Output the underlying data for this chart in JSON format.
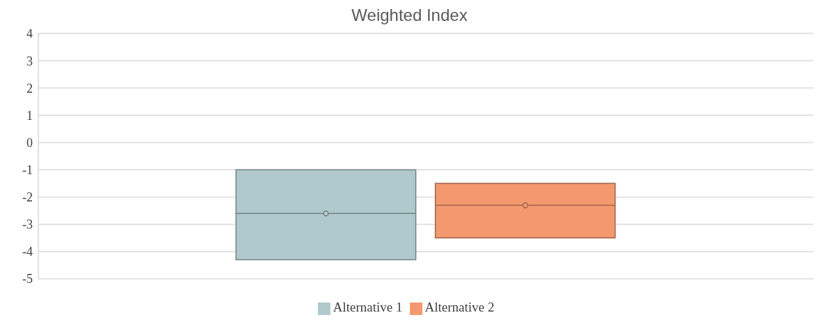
{
  "chart_data": {
    "type": "box",
    "title": "Weighted Index",
    "categories": [
      null
    ],
    "series": [
      {
        "name": "Alternative 1",
        "color": "#b0c9cc",
        "boxes": [
          {
            "q1": -4.3,
            "median": -2.6,
            "q3": -1.0,
            "mean": -2.6
          }
        ]
      },
      {
        "name": "Alternative 2",
        "color": "#f4996f",
        "boxes": [
          {
            "q1": -3.5,
            "median": -2.3,
            "q3": -1.5,
            "mean": -2.3
          }
        ]
      }
    ],
    "ylim": [
      -5,
      4
    ],
    "yticks": [
      -5,
      -4,
      -3,
      -2,
      -1,
      0,
      1,
      2,
      3,
      4
    ],
    "grid": "y",
    "legend": "bottom"
  }
}
